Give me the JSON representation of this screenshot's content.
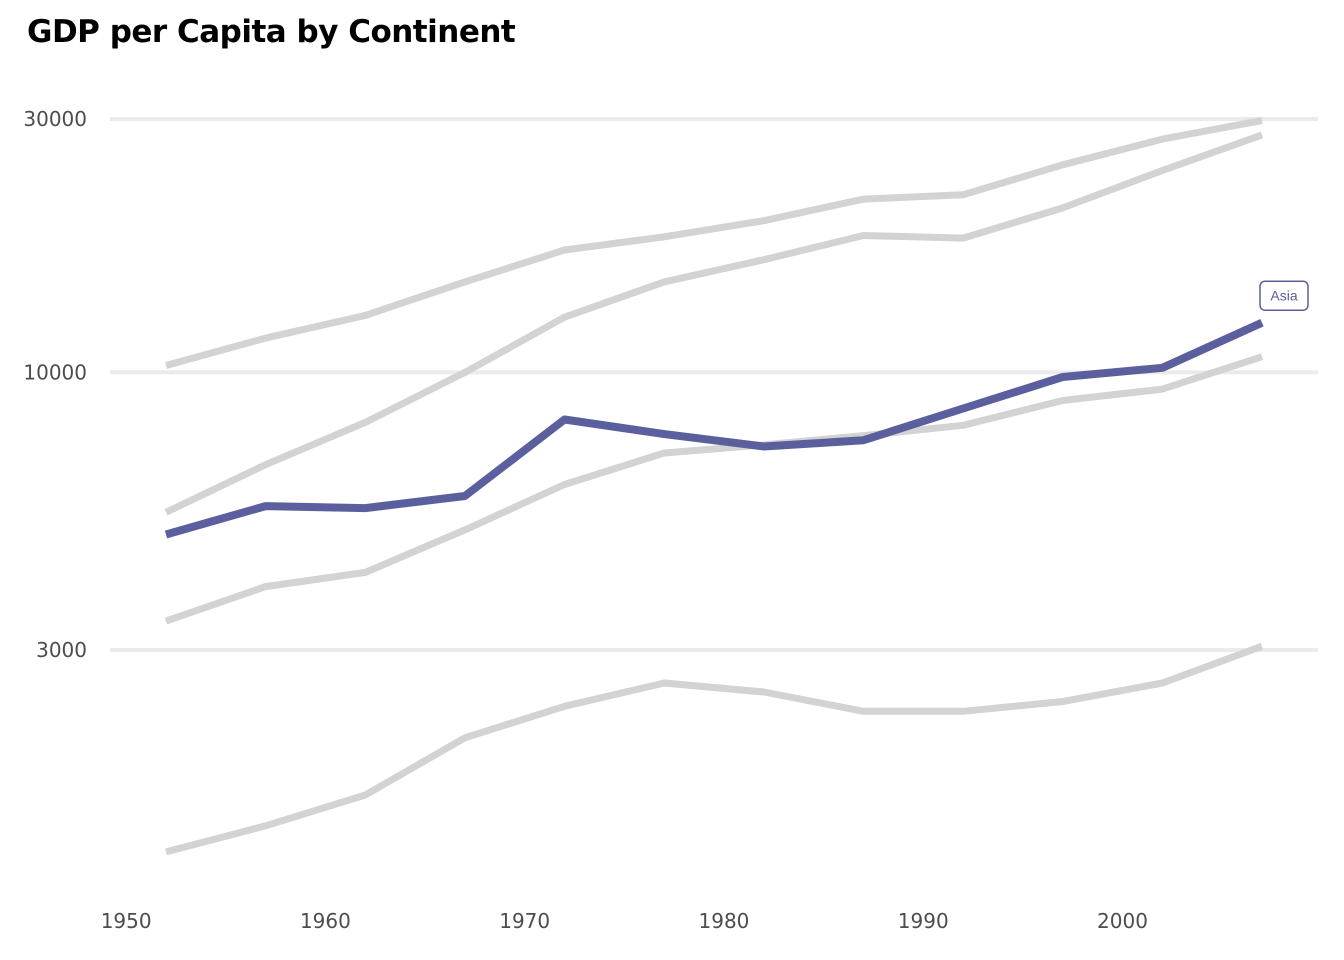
{
  "chart_data": {
    "type": "line",
    "title": "GDP per Capita by Continent",
    "xlabel": "",
    "ylabel": "",
    "y_scale": "log",
    "grid": "horizontal major gridlines only",
    "x_ticks": [
      1950,
      1960,
      1970,
      1980,
      1990,
      2000
    ],
    "y_ticks": [
      3000,
      10000,
      30000
    ],
    "x": [
      1952,
      1957,
      1962,
      1967,
      1972,
      1977,
      1982,
      1987,
      1992,
      1997,
      2002,
      2007
    ],
    "series": [
      {
        "name": "",
        "highlighted": false,
        "values": [
          10300,
          11600,
          12800,
          14800,
          17000,
          18000,
          19300,
          21200,
          21600,
          24600,
          27500,
          29800
        ]
      },
      {
        "name": "",
        "highlighted": false,
        "values": [
          5450,
          6700,
          8050,
          10000,
          12700,
          14800,
          16300,
          18100,
          17900,
          20400,
          24000,
          28000
        ]
      },
      {
        "name": "Asia",
        "highlighted": true,
        "values": [
          4950,
          5600,
          5550,
          5850,
          8150,
          7650,
          7250,
          7450,
          8550,
          9800,
          10200,
          12400
        ]
      },
      {
        "name": "",
        "highlighted": false,
        "values": [
          3400,
          3950,
          4200,
          5050,
          6150,
          7050,
          7300,
          7600,
          7950,
          8850,
          9300,
          10700
        ]
      },
      {
        "name": "",
        "highlighted": false,
        "values": [
          1250,
          1400,
          1600,
          2050,
          2350,
          2600,
          2500,
          2300,
          2300,
          2400,
          2600,
          3050
        ]
      }
    ],
    "colors": {
      "highlight": "#5b5f9e",
      "muted": "#d3d3d3",
      "grid": "#ebebeb",
      "tick_text": "#4d4d4d",
      "callout_border": "#5b5f9e",
      "callout_text": "#5b5f9e"
    },
    "annotations": [
      {
        "text": "Asia",
        "series": "Asia",
        "x": 2007
      }
    ]
  }
}
